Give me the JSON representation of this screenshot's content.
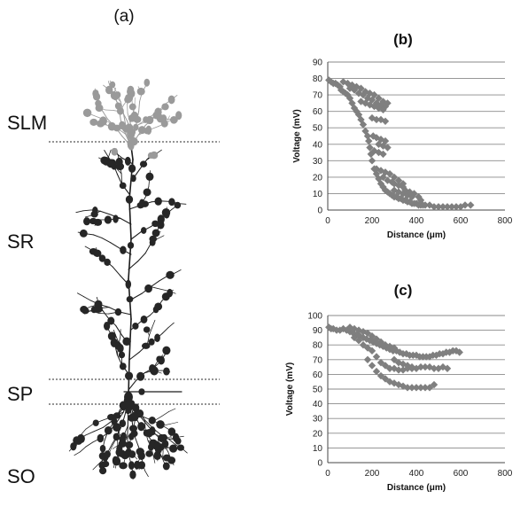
{
  "panel_a": {
    "label": "(a)",
    "layers": [
      "SLM",
      "SR",
      "SP",
      "SO"
    ],
    "colors": {
      "distal_spine": "#9a9a9a",
      "spine": "#262626",
      "dendrite": "#1c1c1c",
      "boundary": "#555555"
    }
  },
  "chart_data": [
    {
      "type": "scatter",
      "title": "(b)",
      "xlabel": "Distance (μm)",
      "ylabel": "Voltage (mV)",
      "xlim": [
        0,
        800
      ],
      "ylim": [
        0,
        90
      ],
      "xticks": [
        0,
        200,
        400,
        600,
        800
      ],
      "yticks": [
        0,
        10,
        20,
        30,
        40,
        50,
        60,
        70,
        80,
        90
      ],
      "grid": "horizontal",
      "marker": "diamond",
      "color": "#7f7f7f",
      "series": [
        {
          "points": [
            [
              5,
              79
            ],
            [
              15,
              78
            ],
            [
              25,
              77
            ],
            [
              35,
              77
            ],
            [
              45,
              76
            ],
            [
              55,
              75
            ],
            [
              60,
              73
            ],
            [
              70,
              72
            ],
            [
              80,
              71
            ],
            [
              90,
              70
            ],
            [
              100,
              68
            ],
            [
              110,
              65
            ],
            [
              120,
              62
            ],
            [
              130,
              60
            ],
            [
              140,
              58
            ],
            [
              150,
              55
            ],
            [
              160,
              52
            ],
            [
              170,
              48
            ],
            [
              180,
              45
            ],
            [
              185,
              42
            ],
            [
              190,
              38
            ],
            [
              195,
              34
            ],
            [
              200,
              30
            ],
            [
              210,
              25
            ],
            [
              220,
              22
            ],
            [
              230,
              19
            ],
            [
              240,
              16
            ],
            [
              250,
              14
            ],
            [
              260,
              12
            ],
            [
              270,
              11
            ],
            [
              280,
              10
            ],
            [
              290,
              9
            ],
            [
              300,
              8
            ],
            [
              310,
              8
            ],
            [
              320,
              7
            ],
            [
              330,
              7
            ],
            [
              340,
              6
            ],
            [
              350,
              6
            ],
            [
              360,
              5
            ],
            [
              370,
              5
            ],
            [
              380,
              4
            ],
            [
              390,
              4
            ],
            [
              400,
              4
            ],
            [
              410,
              3
            ],
            [
              420,
              3
            ],
            [
              430,
              3
            ],
            [
              440,
              3
            ],
            [
              460,
              3
            ],
            [
              480,
              2
            ],
            [
              500,
              2
            ],
            [
              520,
              2
            ],
            [
              540,
              2
            ],
            [
              560,
              2
            ],
            [
              580,
              2
            ],
            [
              600,
              2
            ],
            [
              620,
              3
            ],
            [
              645,
              3
            ],
            [
              70,
              78
            ],
            [
              90,
              77
            ],
            [
              110,
              76
            ],
            [
              130,
              75
            ],
            [
              150,
              74
            ],
            [
              170,
              72
            ],
            [
              190,
              71
            ],
            [
              210,
              70
            ],
            [
              230,
              68
            ],
            [
              250,
              66
            ],
            [
              270,
              65
            ],
            [
              100,
              74
            ],
            [
              120,
              73
            ],
            [
              140,
              71
            ],
            [
              160,
              70
            ],
            [
              180,
              68
            ],
            [
              200,
              67
            ],
            [
              220,
              65
            ],
            [
              240,
              64
            ],
            [
              260,
              63
            ],
            [
              150,
              66
            ],
            [
              170,
              65
            ],
            [
              190,
              64
            ],
            [
              210,
              63
            ],
            [
              230,
              62
            ],
            [
              250,
              61
            ],
            [
              200,
              56
            ],
            [
              220,
              55
            ],
            [
              240,
              55
            ],
            [
              260,
              54
            ],
            [
              205,
              45
            ],
            [
              220,
              44
            ],
            [
              240,
              43
            ],
            [
              260,
              42
            ],
            [
              230,
              40
            ],
            [
              250,
              39
            ],
            [
              270,
              38
            ],
            [
              210,
              36
            ],
            [
              230,
              35
            ],
            [
              250,
              34
            ],
            [
              220,
              25
            ],
            [
              240,
              24
            ],
            [
              260,
              23
            ],
            [
              280,
              22
            ],
            [
              250,
              20
            ],
            [
              270,
              18
            ],
            [
              290,
              17
            ],
            [
              300,
              16
            ],
            [
              320,
              15
            ],
            [
              340,
              14
            ],
            [
              300,
              12
            ],
            [
              320,
              11
            ],
            [
              340,
              10
            ],
            [
              360,
              9
            ],
            [
              380,
              8
            ],
            [
              350,
              12
            ],
            [
              370,
              11
            ],
            [
              390,
              10
            ],
            [
              410,
              8
            ],
            [
              420,
              6
            ],
            [
              300,
              20
            ],
            [
              320,
              18
            ],
            [
              340,
              16
            ]
          ]
        }
      ]
    },
    {
      "type": "scatter",
      "title": "(c)",
      "xlabel": "Distance (μm)",
      "ylabel": "Voltage (mV)",
      "xlim": [
        0,
        800
      ],
      "ylim": [
        0,
        100
      ],
      "xticks": [
        0,
        200,
        400,
        600,
        800
      ],
      "yticks": [
        0,
        10,
        20,
        30,
        40,
        50,
        60,
        70,
        80,
        90,
        100
      ],
      "grid": "horizontal",
      "marker": "diamond",
      "color": "#7f7f7f",
      "series": [
        {
          "points": [
            [
              5,
              92
            ],
            [
              15,
              91
            ],
            [
              25,
              91
            ],
            [
              40,
              90
            ],
            [
              55,
              90
            ],
            [
              70,
              91
            ],
            [
              85,
              90
            ],
            [
              100,
              89
            ],
            [
              115,
              88
            ],
            [
              130,
              87
            ],
            [
              145,
              86
            ],
            [
              160,
              85
            ],
            [
              175,
              84
            ],
            [
              190,
              83
            ],
            [
              205,
              82
            ],
            [
              220,
              81
            ],
            [
              235,
              80
            ],
            [
              250,
              79
            ],
            [
              265,
              78
            ],
            [
              280,
              77
            ],
            [
              295,
              76
            ],
            [
              310,
              76
            ],
            [
              325,
              75
            ],
            [
              340,
              74
            ],
            [
              355,
              74
            ],
            [
              370,
              73
            ],
            [
              385,
              73
            ],
            [
              400,
              73
            ],
            [
              415,
              72
            ],
            [
              430,
              72
            ],
            [
              445,
              72
            ],
            [
              460,
              72
            ],
            [
              475,
              73
            ],
            [
              490,
              73
            ],
            [
              505,
              74
            ],
            [
              520,
              74
            ],
            [
              535,
              75
            ],
            [
              550,
              75
            ],
            [
              565,
              76
            ],
            [
              580,
              76
            ],
            [
              595,
              75
            ],
            [
              100,
              92
            ],
            [
              120,
              91
            ],
            [
              140,
              90
            ],
            [
              160,
              89
            ],
            [
              180,
              88
            ],
            [
              200,
              86
            ],
            [
              220,
              84
            ],
            [
              240,
              82
            ],
            [
              260,
              80
            ],
            [
              280,
              79
            ],
            [
              300,
              78
            ],
            [
              120,
              85
            ],
            [
              140,
              83
            ],
            [
              160,
              80
            ],
            [
              180,
              78
            ],
            [
              200,
              76
            ],
            [
              220,
              72
            ],
            [
              240,
              68
            ],
            [
              260,
              66
            ],
            [
              280,
              64
            ],
            [
              300,
              64
            ],
            [
              320,
              63
            ],
            [
              340,
              63
            ],
            [
              360,
              64
            ],
            [
              380,
              64
            ],
            [
              400,
              64
            ],
            [
              420,
              65
            ],
            [
              440,
              65
            ],
            [
              460,
              65
            ],
            [
              480,
              64
            ],
            [
              500,
              64
            ],
            [
              520,
              65
            ],
            [
              540,
              64
            ],
            [
              180,
              70
            ],
            [
              200,
              66
            ],
            [
              220,
              62
            ],
            [
              240,
              59
            ],
            [
              260,
              57
            ],
            [
              280,
              55
            ],
            [
              300,
              54
            ],
            [
              320,
              53
            ],
            [
              340,
              52
            ],
            [
              360,
              51
            ],
            [
              380,
              51
            ],
            [
              400,
              51
            ],
            [
              420,
              51
            ],
            [
              440,
              51
            ],
            [
              460,
              51
            ],
            [
              480,
              53
            ],
            [
              300,
              70
            ],
            [
              320,
              68
            ],
            [
              340,
              67
            ],
            [
              360,
              66
            ],
            [
              380,
              65
            ]
          ]
        }
      ]
    }
  ]
}
